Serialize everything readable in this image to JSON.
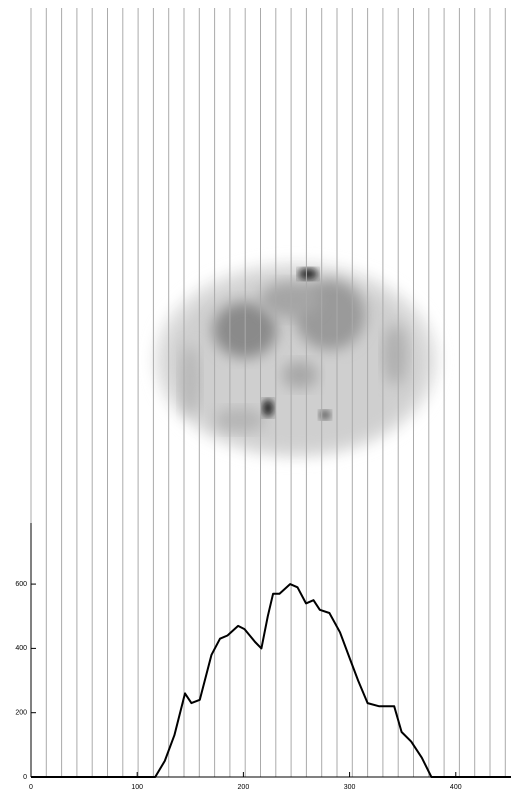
{
  "chart_data": {
    "type": "line",
    "x": [
      0,
      117,
      126,
      135,
      145,
      151,
      159,
      170,
      178,
      185,
      195,
      201,
      211,
      217,
      223,
      228,
      234,
      244,
      251,
      259,
      266,
      272,
      281,
      291,
      300,
      308,
      317,
      328,
      342,
      349,
      358,
      368,
      377,
      452
    ],
    "values": [
      0,
      0,
      50,
      130,
      260,
      230,
      240,
      380,
      430,
      440,
      470,
      460,
      420,
      400,
      500,
      570,
      570,
      600,
      590,
      540,
      550,
      520,
      510,
      450,
      370,
      300,
      230,
      220,
      220,
      140,
      110,
      60,
      0,
      0
    ],
    "color": "#000000",
    "xlim": [
      0,
      452
    ],
    "ylim": [
      0,
      790
    ],
    "xticks": [
      0,
      100,
      200,
      300,
      400
    ],
    "yticks": [
      0,
      200,
      400,
      600
    ]
  }
}
